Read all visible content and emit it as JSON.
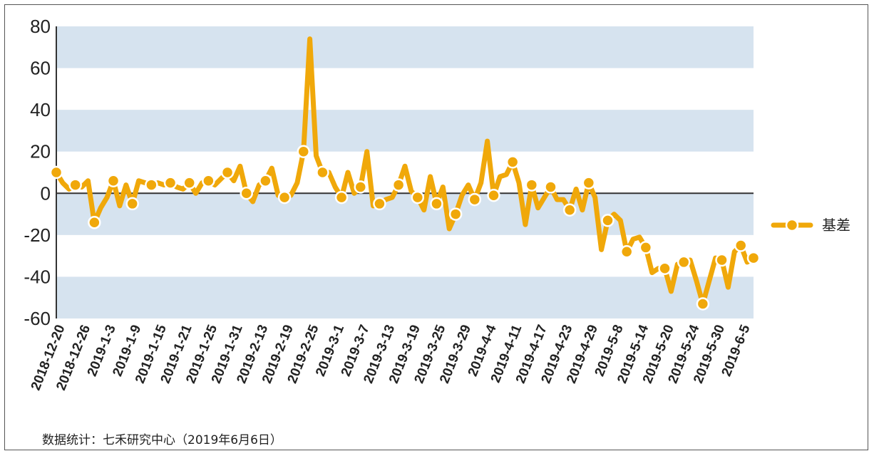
{
  "chart_data": {
    "type": "line",
    "ylim": [
      -60,
      80
    ],
    "yticks": [
      80,
      60,
      40,
      20,
      0,
      -20,
      -40,
      -60
    ],
    "grid": "horizontal bands",
    "legend_position": "right",
    "xtick_labels": [
      "2018-12-20",
      "2018-12-26",
      "2019-1-3",
      "2019-1-9",
      "2019-1-15",
      "2019-1-21",
      "2019-1-25",
      "2019-1-31",
      "2019-2-13",
      "2019-2-19",
      "2019-2-25",
      "2019-3-1",
      "2019-3-7",
      "2019-3-13",
      "2019-3-19",
      "2019-3-25",
      "2019-3-29",
      "2019-4-4",
      "2019-4-11",
      "2019-4-17",
      "2019-4-23",
      "2019-4-29",
      "2019-5-8",
      "2019-5-14",
      "2019-5-20",
      "2019-5-24",
      "2019-5-30",
      "2019-6-5"
    ],
    "series": [
      {
        "name": "基差",
        "values": [
          10,
          5,
          2,
          4,
          3,
          6,
          -14,
          -7,
          -2,
          6,
          -6,
          4,
          -5,
          6,
          5,
          4,
          5,
          4,
          5,
          3,
          2,
          5,
          0,
          5,
          6,
          4,
          7,
          10,
          6,
          13,
          0,
          -4,
          4,
          6,
          12,
          -1,
          -2,
          -1,
          5,
          20,
          74,
          18,
          10,
          10,
          3,
          -2,
          10,
          0,
          3,
          20,
          -6,
          -5,
          -3,
          -2,
          4,
          13,
          1,
          -2,
          -8,
          8,
          -5,
          3,
          -17,
          -10,
          -1,
          4,
          -3,
          5,
          25,
          -1,
          8,
          9,
          15,
          5,
          -15,
          4,
          -7,
          -2,
          3,
          -3,
          -3,
          -8,
          2,
          -8,
          5,
          -2,
          -27,
          -13,
          -10,
          -13,
          -28,
          -22,
          -21,
          -26,
          -38,
          -36,
          -36,
          -47,
          -34,
          -33,
          -32,
          -42,
          -53,
          -42,
          -31,
          -32,
          -45,
          -28,
          -25,
          -33,
          -31
        ]
      }
    ]
  },
  "legend": {
    "label": "基差"
  },
  "colors": {
    "line": "#F0A80A",
    "marker_stroke": "#ffffff",
    "band": "#D6E3EF",
    "axis": "#333333"
  },
  "source_note": "数据统计：七禾研究中心（2019年6月6日）"
}
